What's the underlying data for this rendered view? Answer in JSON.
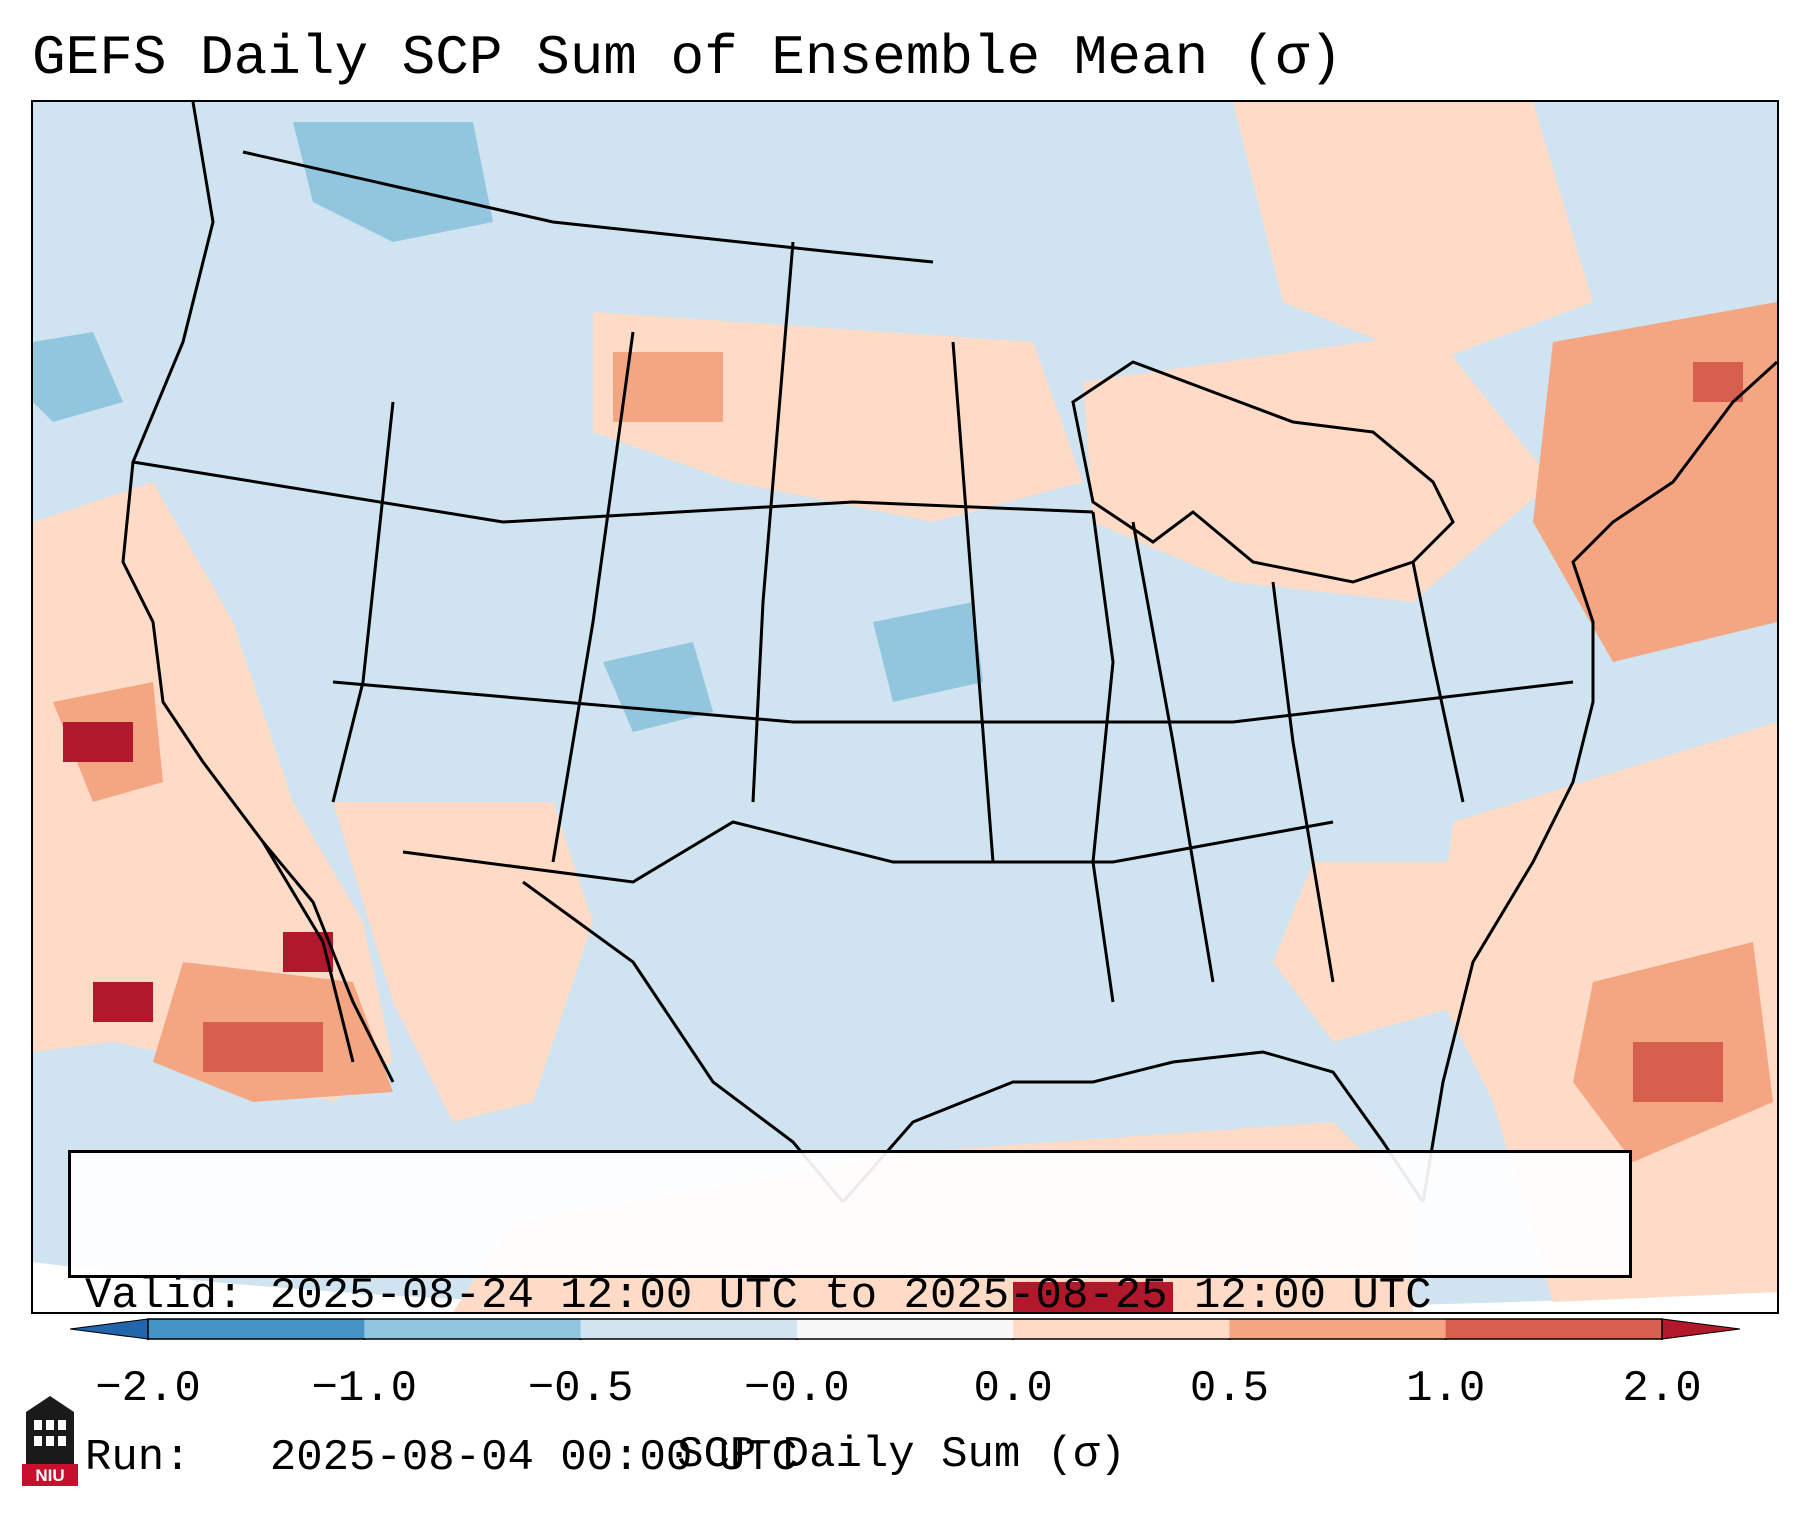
{
  "title": "GEFS Daily SCP Sum of Ensemble Mean (σ)",
  "info": {
    "valid_line": "Valid: 2025-08-24 12:00 UTC to 2025-08-25 12:00 UTC",
    "run_line": "Run:   2025-08-04 00:00 UTC"
  },
  "colorbar": {
    "label": "SCP Daily Sum (σ)",
    "ticks": [
      "−2.0",
      "−1.0",
      "−0.5",
      "−0.0",
      "0.0",
      "0.5",
      "1.0",
      "2.0"
    ],
    "bins": [
      {
        "from": -2.0,
        "to": -1.0,
        "color": "#4393c3"
      },
      {
        "from": -1.0,
        "to": -0.5,
        "color": "#92c5de"
      },
      {
        "from": -0.5,
        "to": -0.0,
        "color": "#d1e5f0"
      },
      {
        "from": -0.0,
        "to": 0.0,
        "color": "#f7f7f7"
      },
      {
        "from": 0.0,
        "to": 0.5,
        "color": "#fddbc7"
      },
      {
        "from": 0.5,
        "to": 1.0,
        "color": "#f4a582"
      },
      {
        "from": 1.0,
        "to": 2.0,
        "color": "#d6604d"
      }
    ],
    "under_color": "#2166ac",
    "over_color": "#b2182b"
  },
  "logo": {
    "text": "NIU"
  },
  "map": {
    "background_color": "#cfe3f0",
    "outline_color": "#000000"
  }
}
